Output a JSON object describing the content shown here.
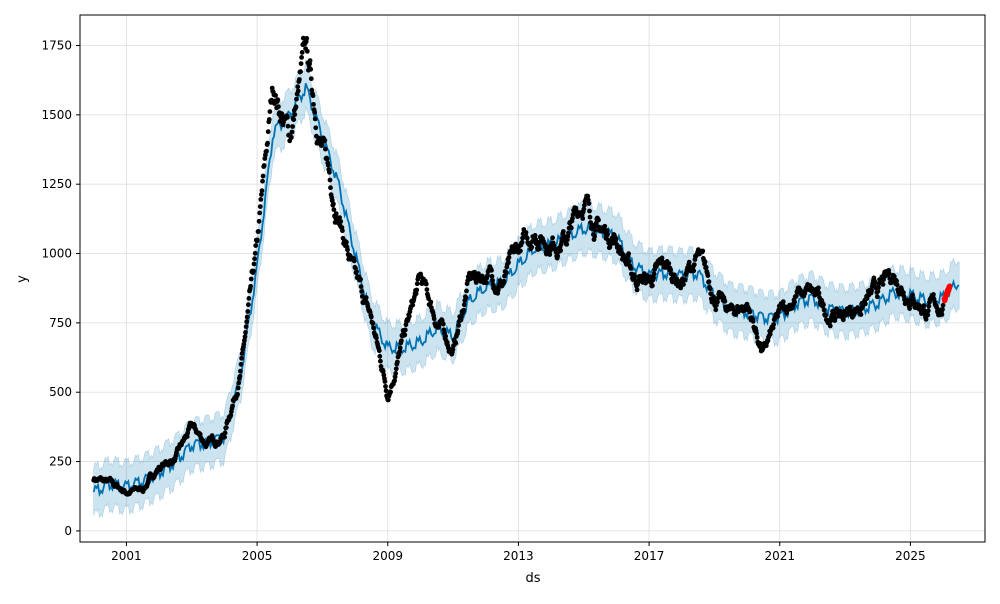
{
  "chart_data": {
    "type": "line",
    "title": "",
    "xlabel": "ds",
    "ylabel": "y",
    "xlim": [
      "1999-08-01",
      "2027-04-15"
    ],
    "ylim": [
      -40,
      1860
    ],
    "grid": true,
    "x_ticks": [
      "2001",
      "2005",
      "2009",
      "2013",
      "2017",
      "2021",
      "2025"
    ],
    "y_ticks": [
      0,
      250,
      500,
      750,
      1000,
      1250,
      1500,
      1750
    ],
    "colors": {
      "observed": "#000000",
      "forecast": "#0072b2",
      "interval": "#0072b2",
      "highlight": "#ff0000",
      "grid": "#dddddd"
    },
    "series": [
      {
        "marker": "dot",
        "x": [
          "2000-01-01",
          "2000-07-01",
          "2001-01-01",
          "2001-07-01",
          "2002-01-01",
          "2002-07-01",
          "2003-01-01",
          "2003-07-01",
          "2004-01-01",
          "2004-07-01",
          "2005-01-01",
          "2005-07-01",
          "2006-01-01",
          "2006-07-01",
          "2007-01-01",
          "2007-07-01",
          "2008-01-01",
          "2008-07-01",
          "2009-01-01",
          "2009-07-01",
          "2010-01-01",
          "2010-07-01",
          "2011-01-01",
          "2011-07-01",
          "2012-01-01",
          "2012-07-01",
          "2013-01-01",
          "2013-07-01",
          "2014-01-01",
          "2014-07-01",
          "2015-01-01",
          "2015-07-01",
          "2016-01-01",
          "2016-07-01",
          "2017-01-01",
          "2017-07-01",
          "2018-01-01",
          "2018-07-01",
          "2019-01-01",
          "2019-07-01",
          "2020-01-01",
          "2020-07-01",
          "2021-01-01",
          "2021-07-01",
          "2022-01-01",
          "2022-07-01",
          "2023-01-01",
          "2023-07-01",
          "2024-01-01",
          "2024-07-01",
          "2025-01-01",
          "2025-07-01",
          "2026-01-01"
        ],
        "y": [
          190,
          170,
          140,
          150,
          230,
          260,
          370,
          310,
          350,
          580,
          1000,
          1600,
          1420,
          1720,
          1380,
          1150,
          900,
          760,
          500,
          700,
          900,
          760,
          650,
          900,
          930,
          900,
          1000,
          1080,
          1050,
          1060,
          1200,
          1080,
          1060,
          920,
          900,
          950,
          900,
          980,
          850,
          780,
          820,
          640,
          770,
          850,
          850,
          780,
          780,
          820,
          860,
          920,
          860,
          800,
          810
        ]
      },
      {
        "name": "",
        "x": [
          "2000-01-01",
          "2000-07-01",
          "2001-01-01",
          "2001-07-01",
          "2002-01-01",
          "2002-07-01",
          "2003-01-01",
          "2003-07-01",
          "2004-01-01",
          "2004-07-01",
          "2005-01-01",
          "2005-07-01",
          "2006-01-01",
          "2006-07-01",
          "2007-01-01",
          "2007-07-01",
          "2008-01-01",
          "2008-07-01",
          "2009-01-01",
          "2009-07-01",
          "2010-01-01",
          "2010-07-01",
          "2011-01-01",
          "2011-07-01",
          "2012-01-01",
          "2012-07-01",
          "2013-01-01",
          "2013-07-01",
          "2014-01-01",
          "2014-07-01",
          "2015-01-01",
          "2015-07-01",
          "2016-01-01",
          "2016-07-01",
          "2017-01-01",
          "2017-07-01",
          "2018-01-01",
          "2018-07-01",
          "2019-01-01",
          "2019-07-01",
          "2020-01-01",
          "2020-07-01",
          "2021-01-01",
          "2021-07-01",
          "2022-01-01",
          "2022-07-01",
          "2023-01-01",
          "2023-07-01",
          "2024-01-01",
          "2024-07-01",
          "2025-01-01",
          "2025-07-01",
          "2026-01-01",
          "2026-07-01"
        ],
        "y": [
          140,
          170,
          160,
          180,
          210,
          250,
          310,
          320,
          340,
          560,
          950,
          1440,
          1500,
          1600,
          1420,
          1250,
          1000,
          760,
          660,
          660,
          680,
          730,
          700,
          830,
          880,
          890,
          960,
          1020,
          1030,
          1060,
          1090,
          1080,
          1060,
          960,
          920,
          930,
          920,
          930,
          850,
          800,
          790,
          770,
          770,
          820,
          840,
          800,
          790,
          800,
          820,
          860,
          850,
          830,
          840,
          900
        ],
        "band_width": 85
      },
      {
        "marker": "dot",
        "x": [
          "2026-01-15",
          "2026-02-15",
          "2026-03-15"
        ],
        "y": [
          830,
          860,
          880
        ]
      }
    ]
  }
}
